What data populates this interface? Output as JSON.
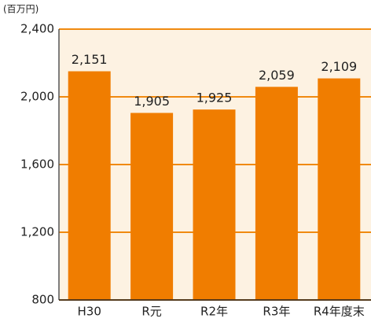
{
  "chart_data": {
    "type": "bar",
    "unit_label": "(百万円)",
    "categories": [
      "H30",
      "R元",
      "R2年",
      "R3年",
      "R4年度末"
    ],
    "values": [
      2151,
      1905,
      1925,
      2059,
      2109
    ],
    "value_labels": [
      "2,151",
      "1,905",
      "1,925",
      "2,059",
      "2,109"
    ],
    "color": "#f07d00",
    "ylim": [
      800,
      2400
    ],
    "yticks": [
      800,
      {
        "value": 1200,
        "label": "1,200"
      },
      {
        "value": 1600,
        "label": "1,600"
      },
      {
        "value": 2000,
        "label": "2,000"
      },
      {
        "value": 2400,
        "label": "2,400"
      }
    ],
    "grid": true
  }
}
